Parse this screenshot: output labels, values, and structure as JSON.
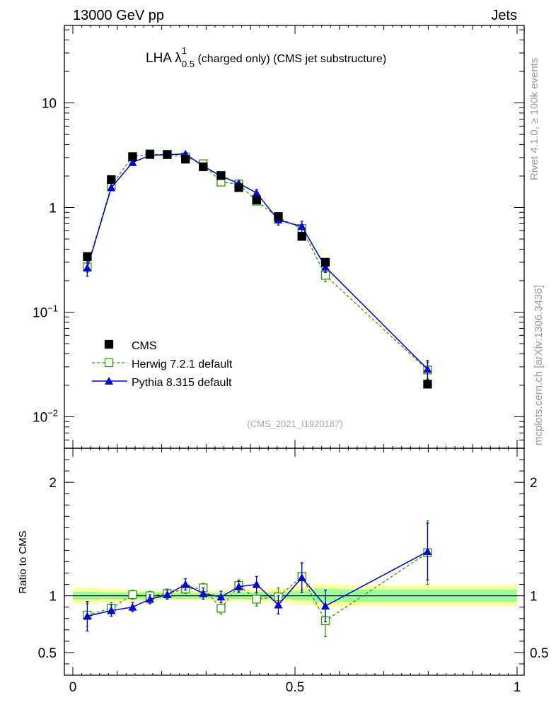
{
  "header": {
    "left": "13000 GeV pp",
    "right": "Jets"
  },
  "side_labels": {
    "rivet": "Rivet 4.1.0, ≥ 100k events",
    "mcplots": "mcplots.cern.ch [arXiv:1306.3436]"
  },
  "colors": {
    "data": "#000000",
    "herwig": "#339900",
    "pythia": "#0000dd",
    "band_inner": "#99ff99",
    "band_outer": "#ffff99"
  },
  "chart_data": [
    {
      "type": "line",
      "yscale": "log",
      "title": "LHA λ",
      "title_sup": "1",
      "title_sub": "0.5",
      "title_rest": " (charged only) (CMS jet substructure)",
      "watermark": "(CMS_2021_I1920187)",
      "xlim": [
        0,
        1
      ],
      "ylim": [
        0.005,
        55
      ],
      "yticks": [
        {
          "value": 10,
          "base": "10",
          "exp": ""
        },
        {
          "value": 1,
          "base": "1",
          "exp": ""
        },
        {
          "value": 0.1,
          "base": "10",
          "exp": "−1"
        },
        {
          "value": 0.01,
          "base": "10",
          "exp": "−2"
        }
      ],
      "legend": {
        "position": "bottom-left",
        "entries": [
          "CMS",
          "Herwig 7.2.1 default",
          "Pythia 8.315 default"
        ]
      },
      "x": [
        0.0325,
        0.0865,
        0.1345,
        0.1735,
        0.2125,
        0.2535,
        0.2935,
        0.3335,
        0.3735,
        0.4135,
        0.4625,
        0.5155,
        0.5685,
        0.7985
      ],
      "series": [
        {
          "name": "CMS",
          "style": "data",
          "values": [
            0.34,
            1.85,
            3.05,
            3.25,
            3.22,
            2.9,
            2.45,
            2.02,
            1.55,
            1.18,
            0.82,
            0.53,
            0.3,
            0.0205
          ]
        },
        {
          "name": "Herwig 7.2.1 default",
          "style": "herwig",
          "values": [
            0.27,
            1.62,
            3.08,
            3.22,
            3.2,
            3.05,
            2.62,
            1.75,
            1.68,
            1.15,
            0.8,
            0.63,
            0.225,
            0.028
          ],
          "err": [
            0.03,
            0.08,
            0.08,
            0.08,
            0.08,
            0.08,
            0.08,
            0.08,
            0.08,
            0.06,
            0.06,
            0.05,
            0.03,
            0.005
          ]
        },
        {
          "name": "Pythia 8.315 default",
          "style": "pythia",
          "values": [
            0.265,
            1.55,
            2.7,
            3.15,
            3.2,
            3.25,
            2.48,
            2.0,
            1.7,
            1.38,
            0.76,
            0.66,
            0.27,
            0.0285
          ],
          "err": [
            0.045,
            0.08,
            0.08,
            0.08,
            0.08,
            0.08,
            0.08,
            0.08,
            0.08,
            0.1,
            0.08,
            0.08,
            0.03,
            0.006
          ]
        }
      ]
    },
    {
      "type": "line",
      "yscale": "linear",
      "ylabel": "Ratio to CMS",
      "xlim": [
        0,
        1
      ],
      "ylim": [
        0.3,
        2.3
      ],
      "yticks": [
        0.5,
        1,
        2
      ],
      "ytick_labels": [
        "0.5",
        "1",
        "2"
      ],
      "xticks": [
        0,
        0.5,
        1
      ],
      "xtick_labels": [
        "0",
        "0.5",
        "1"
      ],
      "reference": 1,
      "band_edges": [
        0,
        0.06,
        0.11,
        0.155,
        0.195,
        0.23,
        0.275,
        0.315,
        0.355,
        0.395,
        0.435,
        0.49,
        0.54,
        0.6,
        1.0
      ],
      "band_inner": [
        0.035,
        0.03,
        0.03,
        0.03,
        0.025,
        0.025,
        0.025,
        0.025,
        0.03,
        0.03,
        0.03,
        0.04,
        0.06,
        0.055
      ],
      "band_outer": [
        0.07,
        0.06,
        0.05,
        0.045,
        0.04,
        0.04,
        0.04,
        0.045,
        0.05,
        0.055,
        0.06,
        0.08,
        0.1,
        0.09
      ],
      "x": [
        0.0325,
        0.0865,
        0.1345,
        0.1735,
        0.2125,
        0.2535,
        0.2935,
        0.3335,
        0.3735,
        0.4135,
        0.4625,
        0.5155,
        0.5685,
        0.7985
      ],
      "series": [
        {
          "name": "Herwig 7.2.1 default",
          "style": "herwig",
          "values": [
            0.83,
            0.89,
            1.01,
            1.0,
            1.02,
            1.06,
            1.07,
            0.89,
            1.09,
            0.97,
            0.99,
            1.17,
            0.78,
            1.38
          ],
          "err": [
            0.1,
            0.05,
            0.04,
            0.04,
            0.04,
            0.04,
            0.04,
            0.05,
            0.05,
            0.06,
            0.08,
            0.12,
            0.14,
            0.28
          ]
        },
        {
          "name": "Pythia 8.315 default",
          "style": "pythia",
          "values": [
            0.82,
            0.87,
            0.9,
            0.97,
            1.01,
            1.1,
            1.02,
            0.99,
            1.08,
            1.1,
            0.92,
            1.16,
            0.91,
            1.39
          ],
          "err": [
            0.13,
            0.05,
            0.04,
            0.04,
            0.04,
            0.05,
            0.05,
            0.05,
            0.05,
            0.07,
            0.08,
            0.13,
            0.14,
            0.25
          ]
        }
      ]
    }
  ]
}
